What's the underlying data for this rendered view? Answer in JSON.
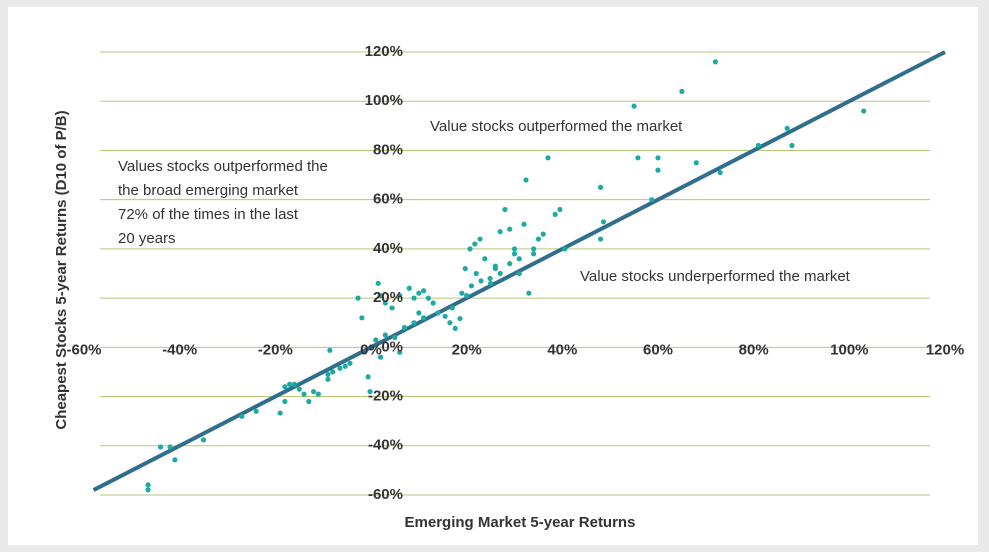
{
  "chart_data": {
    "type": "scatter",
    "x_label": "Emerging Market 5-year Returns",
    "y_label": "Cheapest Stocks 5-year Returns (D10 of P/B)",
    "annotations": [
      "Value stocks outperformed the market",
      "Value stocks underperformed the market"
    ],
    "note_lines": [
      "Values stocks outperformed the",
      "the broad emerging market",
      "72% of the times in the last",
      "20 years"
    ],
    "xlim": [
      -60,
      120
    ],
    "ylim": [
      -60,
      120
    ],
    "xticks": [
      {
        "value": -60,
        "label": "-60%"
      },
      {
        "value": -40,
        "label": "-40%"
      },
      {
        "value": -20,
        "label": "-20%"
      },
      {
        "value": 0,
        "label": "0%"
      },
      {
        "value": 20,
        "label": "20%"
      },
      {
        "value": 40,
        "label": "40%"
      },
      {
        "value": 60,
        "label": "60%"
      },
      {
        "value": 80,
        "label": "80%"
      },
      {
        "value": 100,
        "label": "100%"
      },
      {
        "value": 120,
        "label": "120%"
      }
    ],
    "yticks": [
      {
        "value": -60,
        "label": "-60%"
      },
      {
        "value": -40,
        "label": "-40%"
      },
      {
        "value": -20,
        "label": "-20%"
      },
      {
        "value": 0,
        "label": "0%"
      },
      {
        "value": 20,
        "label": "20%"
      },
      {
        "value": 40,
        "label": "40%"
      },
      {
        "value": 60,
        "label": "60%"
      },
      {
        "value": 80,
        "label": "80%"
      },
      {
        "value": 100,
        "label": "100%"
      },
      {
        "value": 120,
        "label": "120%"
      }
    ],
    "grid": true,
    "diagonal": {
      "x": [
        -58,
        120
      ],
      "y": [
        -58,
        120
      ],
      "color": "#2f6e8c"
    },
    "color": "#1fa9a3",
    "x": [
      -46.6,
      -46.6,
      -44,
      -42,
      -41,
      -35,
      -27,
      -24,
      -19,
      -18,
      -18,
      -17,
      -16,
      -15,
      -14,
      -13,
      -12,
      -11,
      -9,
      -9,
      -8,
      -6.5,
      -5.4,
      -4.4,
      -8.6,
      -0.6,
      -0.2,
      -1.9,
      -2.7,
      1.5,
      1.9,
      3,
      4.4,
      6,
      7,
      8,
      9,
      10,
      11,
      12,
      13,
      15.5,
      16.5,
      17.6,
      18.6,
      19,
      19.7,
      20.7,
      21.7,
      22.8,
      23.8,
      24.9,
      26,
      27,
      28,
      29,
      30,
      31,
      32,
      32.4,
      33,
      34,
      35,
      36,
      37,
      38.5,
      39.5,
      40.5,
      48,
      48,
      48.6,
      55,
      55.8,
      58.7,
      60,
      60,
      65,
      68,
      72,
      73,
      81,
      87,
      88,
      103,
      1,
      3,
      5,
      7,
      9,
      11,
      14,
      20,
      21,
      23,
      25,
      27,
      29,
      31,
      34,
      2,
      6,
      10,
      17,
      22,
      26,
      30
    ],
    "y": [
      -57.9,
      -55.9,
      -40.5,
      -40.5,
      -45.7,
      -37.6,
      -28,
      -26,
      -26.7,
      -22,
      -16,
      -15,
      -15,
      -17,
      -19,
      -22,
      -18,
      -19,
      -13,
      -11,
      -10,
      -8.5,
      -7.7,
      -6.5,
      -1.2,
      -12,
      -18,
      12,
      20,
      26,
      21,
      18,
      16,
      21,
      8,
      24,
      20,
      22,
      23,
      20,
      18,
      12.6,
      10,
      7.7,
      11.7,
      22,
      32,
      40,
      42,
      44,
      36,
      28,
      32,
      47,
      56,
      48,
      40,
      36,
      50,
      68,
      22,
      40,
      44,
      46,
      77,
      54,
      56,
      40,
      65,
      44,
      51,
      98,
      77,
      60,
      77,
      72,
      104,
      75,
      116,
      71,
      82,
      89,
      82,
      96,
      3,
      5,
      4,
      8,
      10,
      12,
      14,
      21,
      25,
      27,
      26,
      30,
      34,
      30,
      38,
      -4,
      -2,
      14,
      16,
      30,
      33,
      38
    ]
  }
}
